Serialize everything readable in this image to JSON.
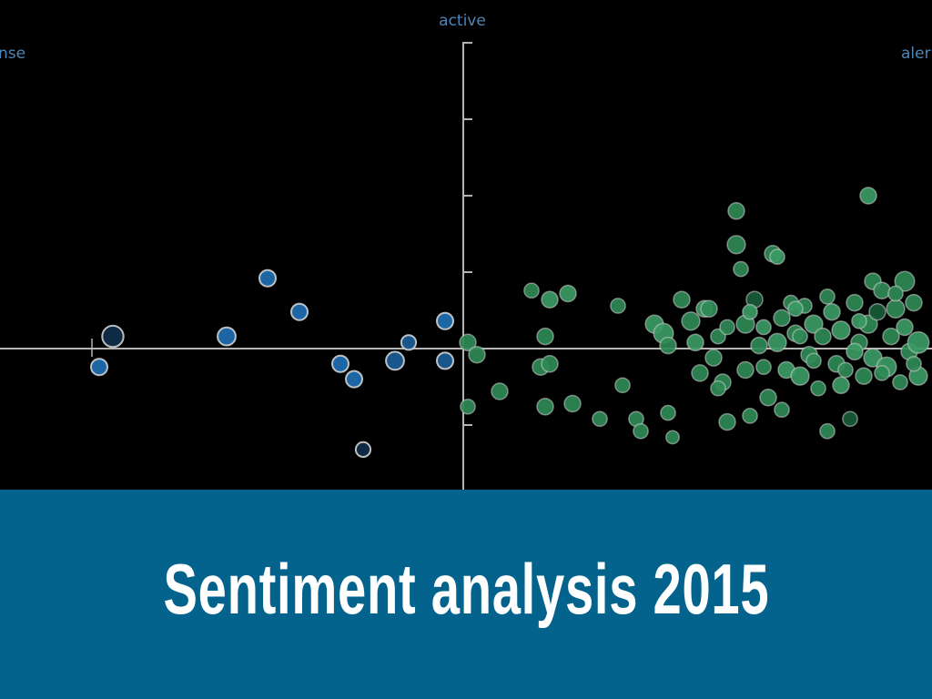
{
  "title": "Sentiment analysis 2015",
  "colors": {
    "background": "#000000",
    "banner": "#04638d",
    "axis": "#b4b4b4",
    "label": "#4e86b5",
    "negative": "#1e6fb3",
    "negative_dark": "#0f2e4a",
    "positive": "#2f8a55",
    "positive_dark": "#175c38",
    "marker_stroke": "#d0d0d0"
  },
  "chart_data": {
    "type": "scatter",
    "labels": {
      "top": "active",
      "left": "nse",
      "right": "aler"
    },
    "xlim": [
      -1,
      1
    ],
    "ylim": [
      -1,
      1
    ],
    "yticks": [
      -1,
      -0.75,
      -0.5,
      -0.25,
      0,
      0.25,
      0.5,
      0.75,
      1
    ],
    "grid": false,
    "series": [
      {
        "group": "negative",
        "points": [
          {
            "x": -0.77,
            "y": 0.04,
            "s": 1.3,
            "shade": "dark"
          },
          {
            "x": -0.8,
            "y": -0.06,
            "s": 1.0,
            "shade": "light"
          },
          {
            "x": -0.52,
            "y": 0.04,
            "s": 1.1,
            "shade": "light"
          },
          {
            "x": -0.43,
            "y": 0.23,
            "s": 1.0,
            "shade": "light"
          },
          {
            "x": -0.36,
            "y": 0.12,
            "s": 1.0,
            "shade": "light"
          },
          {
            "x": -0.27,
            "y": -0.05,
            "s": 1.0,
            "shade": "light"
          },
          {
            "x": -0.24,
            "y": -0.1,
            "s": 1.0,
            "shade": "light"
          },
          {
            "x": -0.22,
            "y": -0.33,
            "s": 0.9,
            "shade": "dark"
          },
          {
            "x": -0.15,
            "y": -0.04,
            "s": 1.1,
            "shade": "mid"
          },
          {
            "x": -0.12,
            "y": 0.02,
            "s": 0.9,
            "shade": "mid"
          },
          {
            "x": -0.04,
            "y": -0.04,
            "s": 1.0,
            "shade": "mid"
          },
          {
            "x": -0.04,
            "y": 0.09,
            "s": 1.0,
            "shade": "light"
          }
        ]
      },
      {
        "group": "positive",
        "points": [
          {
            "x": 0.01,
            "y": 0.02,
            "s": 1.0,
            "shade": "mid"
          },
          {
            "x": 0.03,
            "y": -0.02,
            "s": 1.0,
            "shade": "mid"
          },
          {
            "x": 0.01,
            "y": -0.19,
            "s": 0.9,
            "shade": "mid"
          },
          {
            "x": 0.08,
            "y": -0.14,
            "s": 1.0,
            "shade": "mid"
          },
          {
            "x": 0.15,
            "y": 0.19,
            "s": 0.9,
            "shade": "mid"
          },
          {
            "x": 0.19,
            "y": 0.16,
            "s": 1.0,
            "shade": "light"
          },
          {
            "x": 0.23,
            "y": 0.18,
            "s": 1.0,
            "shade": "light"
          },
          {
            "x": 0.18,
            "y": 0.04,
            "s": 1.0,
            "shade": "mid"
          },
          {
            "x": 0.17,
            "y": -0.06,
            "s": 1.0,
            "shade": "mid"
          },
          {
            "x": 0.19,
            "y": -0.05,
            "s": 1.0,
            "shade": "mid"
          },
          {
            "x": 0.18,
            "y": -0.19,
            "s": 1.0,
            "shade": "mid"
          },
          {
            "x": 0.24,
            "y": -0.18,
            "s": 1.0,
            "shade": "mid"
          },
          {
            "x": 0.3,
            "y": -0.23,
            "s": 0.9,
            "shade": "mid"
          },
          {
            "x": 0.34,
            "y": 0.14,
            "s": 0.9,
            "shade": "mid"
          },
          {
            "x": 0.35,
            "y": -0.12,
            "s": 0.9,
            "shade": "mid"
          },
          {
            "x": 0.38,
            "y": -0.23,
            "s": 0.9,
            "shade": "mid"
          },
          {
            "x": 0.39,
            "y": -0.27,
            "s": 0.9,
            "shade": "mid"
          },
          {
            "x": 0.42,
            "y": 0.08,
            "s": 1.1,
            "shade": "light"
          },
          {
            "x": 0.44,
            "y": 0.05,
            "s": 1.2,
            "shade": "light"
          },
          {
            "x": 0.45,
            "y": 0.01,
            "s": 1.0,
            "shade": "mid"
          },
          {
            "x": 0.45,
            "y": -0.21,
            "s": 0.9,
            "shade": "mid"
          },
          {
            "x": 0.46,
            "y": -0.29,
            "s": 0.8,
            "shade": "mid"
          },
          {
            "x": 0.48,
            "y": 0.16,
            "s": 1.0,
            "shade": "mid"
          },
          {
            "x": 0.5,
            "y": 0.09,
            "s": 1.1,
            "shade": "mid"
          },
          {
            "x": 0.51,
            "y": 0.02,
            "s": 1.0,
            "shade": "light"
          },
          {
            "x": 0.52,
            "y": -0.08,
            "s": 1.0,
            "shade": "mid"
          },
          {
            "x": 0.53,
            "y": 0.13,
            "s": 1.0,
            "shade": "light"
          },
          {
            "x": 0.55,
            "y": -0.03,
            "s": 1.0,
            "shade": "mid"
          },
          {
            "x": 0.56,
            "y": 0.04,
            "s": 0.9,
            "shade": "mid"
          },
          {
            "x": 0.57,
            "y": -0.11,
            "s": 1.0,
            "shade": "mid"
          },
          {
            "x": 0.58,
            "y": -0.24,
            "s": 1.0,
            "shade": "mid"
          },
          {
            "x": 0.6,
            "y": 0.45,
            "s": 1.0,
            "shade": "mid"
          },
          {
            "x": 0.6,
            "y": 0.34,
            "s": 1.1,
            "shade": "mid"
          },
          {
            "x": 0.61,
            "y": 0.26,
            "s": 0.9,
            "shade": "mid"
          },
          {
            "x": 0.62,
            "y": 0.08,
            "s": 1.1,
            "shade": "mid"
          },
          {
            "x": 0.62,
            "y": -0.07,
            "s": 1.0,
            "shade": "mid"
          },
          {
            "x": 0.63,
            "y": -0.22,
            "s": 0.9,
            "shade": "mid"
          },
          {
            "x": 0.64,
            "y": 0.16,
            "s": 1.0,
            "shade": "dark"
          },
          {
            "x": 0.65,
            "y": 0.01,
            "s": 1.0,
            "shade": "mid"
          },
          {
            "x": 0.66,
            "y": 0.07,
            "s": 0.9,
            "shade": "light"
          },
          {
            "x": 0.67,
            "y": -0.16,
            "s": 1.0,
            "shade": "mid"
          },
          {
            "x": 0.68,
            "y": 0.31,
            "s": 1.0,
            "shade": "mid"
          },
          {
            "x": 0.69,
            "y": 0.3,
            "s": 0.9,
            "shade": "light"
          },
          {
            "x": 0.69,
            "y": 0.02,
            "s": 1.1,
            "shade": "light"
          },
          {
            "x": 0.7,
            "y": -0.2,
            "s": 0.9,
            "shade": "mid"
          },
          {
            "x": 0.71,
            "y": -0.07,
            "s": 1.0,
            "shade": "light"
          },
          {
            "x": 0.72,
            "y": 0.15,
            "s": 0.9,
            "shade": "mid"
          },
          {
            "x": 0.73,
            "y": 0.05,
            "s": 1.0,
            "shade": "mid"
          },
          {
            "x": 0.74,
            "y": -0.09,
            "s": 1.1,
            "shade": "light"
          },
          {
            "x": 0.75,
            "y": 0.14,
            "s": 0.9,
            "shade": "mid"
          },
          {
            "x": 0.76,
            "y": -0.02,
            "s": 1.0,
            "shade": "mid"
          },
          {
            "x": 0.77,
            "y": 0.08,
            "s": 1.1,
            "shade": "light"
          },
          {
            "x": 0.78,
            "y": -0.13,
            "s": 0.9,
            "shade": "mid"
          },
          {
            "x": 0.79,
            "y": 0.04,
            "s": 1.0,
            "shade": "mid"
          },
          {
            "x": 0.8,
            "y": -0.27,
            "s": 0.9,
            "shade": "mid"
          },
          {
            "x": 0.81,
            "y": 0.12,
            "s": 1.0,
            "shade": "light"
          },
          {
            "x": 0.82,
            "y": -0.05,
            "s": 1.0,
            "shade": "mid"
          },
          {
            "x": 0.83,
            "y": 0.06,
            "s": 1.1,
            "shade": "light"
          },
          {
            "x": 0.84,
            "y": -0.07,
            "s": 0.9,
            "shade": "mid"
          },
          {
            "x": 0.85,
            "y": -0.23,
            "s": 0.9,
            "shade": "dark"
          },
          {
            "x": 0.86,
            "y": 0.15,
            "s": 1.0,
            "shade": "mid"
          },
          {
            "x": 0.87,
            "y": 0.02,
            "s": 1.0,
            "shade": "mid"
          },
          {
            "x": 0.88,
            "y": -0.09,
            "s": 1.0,
            "shade": "mid"
          },
          {
            "x": 0.89,
            "y": 0.08,
            "s": 1.1,
            "shade": "mid"
          },
          {
            "x": 0.9,
            "y": 0.22,
            "s": 1.0,
            "shade": "mid"
          },
          {
            "x": 0.9,
            "y": -0.03,
            "s": 1.1,
            "shade": "light"
          },
          {
            "x": 0.91,
            "y": 0.12,
            "s": 1.0,
            "shade": "dark"
          },
          {
            "x": 0.92,
            "y": 0.19,
            "s": 1.0,
            "shade": "mid"
          },
          {
            "x": 0.93,
            "y": -0.06,
            "s": 1.2,
            "shade": "light"
          },
          {
            "x": 0.94,
            "y": 0.04,
            "s": 1.0,
            "shade": "mid"
          },
          {
            "x": 0.95,
            "y": 0.13,
            "s": 1.1,
            "shade": "mid"
          },
          {
            "x": 0.96,
            "y": -0.11,
            "s": 0.9,
            "shade": "mid"
          },
          {
            "x": 0.97,
            "y": 0.07,
            "s": 1.0,
            "shade": "light"
          },
          {
            "x": 0.97,
            "y": 0.22,
            "s": 1.2,
            "shade": "mid"
          },
          {
            "x": 0.98,
            "y": -0.01,
            "s": 1.0,
            "shade": "mid"
          },
          {
            "x": 0.99,
            "y": 0.15,
            "s": 1.0,
            "shade": "mid"
          },
          {
            "x": 1.0,
            "y": -0.09,
            "s": 1.1,
            "shade": "light"
          },
          {
            "x": 1.0,
            "y": 0.02,
            "s": 1.3,
            "shade": "light"
          },
          {
            "x": 0.58,
            "y": 0.07,
            "s": 0.9,
            "shade": "mid"
          },
          {
            "x": 0.54,
            "y": 0.13,
            "s": 1.0,
            "shade": "mid"
          },
          {
            "x": 0.66,
            "y": -0.06,
            "s": 0.9,
            "shade": "mid"
          },
          {
            "x": 0.7,
            "y": 0.1,
            "s": 1.0,
            "shade": "mid"
          },
          {
            "x": 0.73,
            "y": 0.13,
            "s": 0.9,
            "shade": "light"
          },
          {
            "x": 0.77,
            "y": -0.04,
            "s": 0.9,
            "shade": "mid"
          },
          {
            "x": 0.8,
            "y": 0.17,
            "s": 0.9,
            "shade": "mid"
          },
          {
            "x": 0.83,
            "y": -0.12,
            "s": 1.0,
            "shade": "light"
          },
          {
            "x": 0.87,
            "y": 0.09,
            "s": 0.9,
            "shade": "light"
          },
          {
            "x": 0.92,
            "y": -0.08,
            "s": 0.9,
            "shade": "mid"
          },
          {
            "x": 0.95,
            "y": 0.18,
            "s": 0.9,
            "shade": "mid"
          },
          {
            "x": 0.99,
            "y": -0.05,
            "s": 0.9,
            "shade": "mid"
          },
          {
            "x": 0.86,
            "y": -0.01,
            "s": 1.0,
            "shade": "light"
          },
          {
            "x": 0.74,
            "y": 0.04,
            "s": 0.9,
            "shade": "mid"
          },
          {
            "x": 0.63,
            "y": 0.12,
            "s": 0.9,
            "shade": "light"
          },
          {
            "x": 0.56,
            "y": -0.13,
            "s": 0.9,
            "shade": "mid"
          },
          {
            "x": 0.89,
            "y": 0.5,
            "s": 1.0,
            "shade": "light"
          }
        ]
      }
    ]
  }
}
